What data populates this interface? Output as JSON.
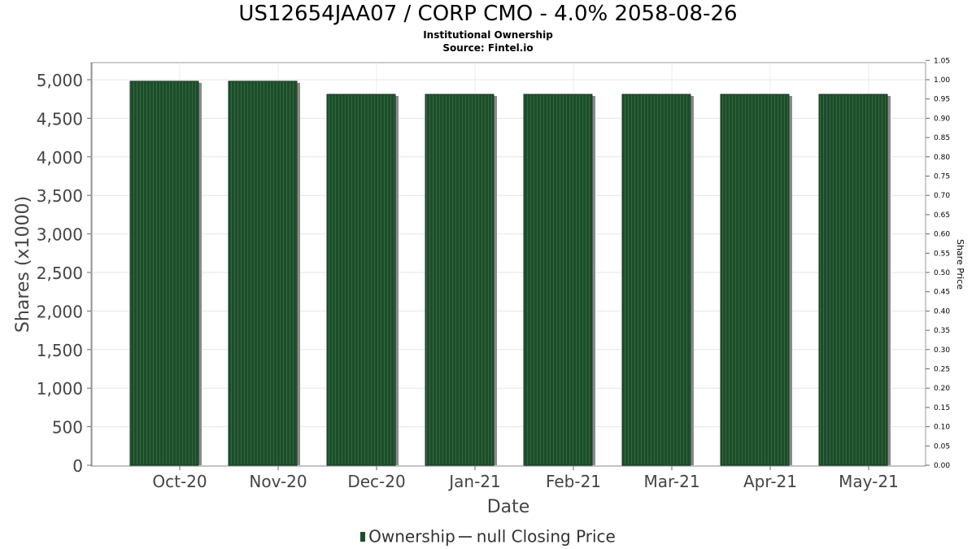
{
  "chart_data": {
    "type": "bar",
    "title": "US12654JAA07 / CORP CMO - 4.0% 2058-08-26",
    "subtitle": "Institutional Ownership",
    "source": "Source: Fintel.io",
    "xlabel": "Date",
    "ylabel": "Shares (x1000)",
    "y2label": "Share Price",
    "categories": [
      "Oct-20",
      "Nov-20",
      "Dec-20",
      "Jan-21",
      "Feb-21",
      "Mar-21",
      "Apr-21",
      "May-21"
    ],
    "series": [
      {
        "name": "Ownership",
        "values": [
          4980,
          4980,
          4810,
          4810,
          4810,
          4810,
          4810,
          4810
        ]
      }
    ],
    "ylim": [
      0,
      5200
    ],
    "yticks": [
      "0",
      "500",
      "1,000",
      "1,500",
      "2,000",
      "2,500",
      "3,000",
      "3,500",
      "4,000",
      "4,500",
      "5,000"
    ],
    "y2lim": [
      0,
      1.05
    ],
    "y2ticks": [
      "0.00",
      "0.05",
      "0.10",
      "0.15",
      "0.20",
      "0.25",
      "0.30",
      "0.35",
      "0.40",
      "0.45",
      "0.50",
      "0.55",
      "0.60",
      "0.65",
      "0.70",
      "0.75",
      "0.80",
      "0.85",
      "0.90",
      "0.95",
      "1.00",
      "1.05"
    ],
    "legend": {
      "ownership_label": "Ownership",
      "price_label": "null Closing Price",
      "placement": "bottom"
    },
    "grid": true,
    "colors": {
      "bar": "#1e4d2b",
      "bar_stripe": "#2f6a3c",
      "bar_shadow": "#8a8a8a",
      "grid": "#e6e6e6"
    }
  }
}
